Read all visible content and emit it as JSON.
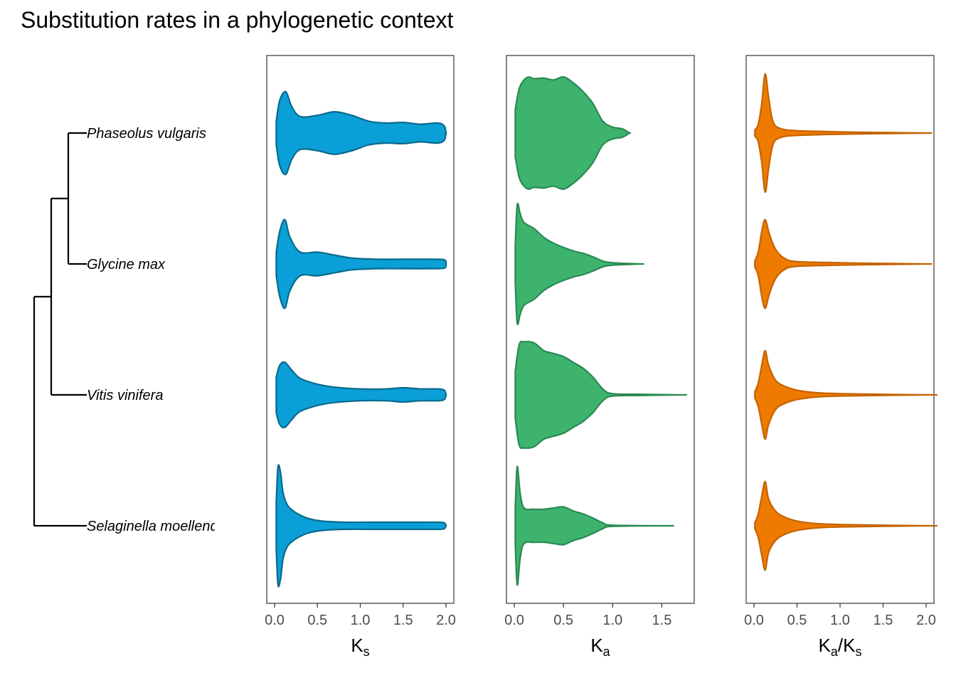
{
  "title": "Substitution rates in a phylogenetic context",
  "species": [
    "Phaseolus vulgaris",
    "Glycine max",
    "Vitis vinifera",
    "Selaginella moellendorffii"
  ],
  "colors": {
    "Ks": "#0a9fd6",
    "Ka": "#3db36e",
    "KaKs": "#ef7a00"
  },
  "chart_data": [
    {
      "type": "violin",
      "panel": "Ks",
      "xlabel": {
        "main": "K",
        "sub": "s"
      },
      "xlim": [
        0,
        2
      ],
      "xticks": [
        "0.0",
        "0.5",
        "1.0",
        "1.5",
        "2.0"
      ],
      "categories": [
        "Phaseolus vulgaris",
        "Glycine max",
        "Vitis vinifera",
        "Selaginella moellendorffii"
      ],
      "series": [
        {
          "name": "Phaseolus vulgaris",
          "range": [
            0.02,
            2.0
          ],
          "profile": [
            [
              0.02,
              0.2
            ],
            [
              0.06,
              0.55
            ],
            [
              0.13,
              0.7
            ],
            [
              0.2,
              0.45
            ],
            [
              0.3,
              0.28
            ],
            [
              0.5,
              0.3
            ],
            [
              0.7,
              0.36
            ],
            [
              0.9,
              0.3
            ],
            [
              1.1,
              0.2
            ],
            [
              1.3,
              0.17
            ],
            [
              1.5,
              0.18
            ],
            [
              1.7,
              0.15
            ],
            [
              1.9,
              0.17
            ],
            [
              1.98,
              0.12
            ],
            [
              2.0,
              0.0
            ]
          ]
        },
        {
          "name": "Glycine max",
          "range": [
            0.02,
            2.0
          ],
          "profile": [
            [
              0.02,
              0.2
            ],
            [
              0.06,
              0.55
            ],
            [
              0.12,
              0.75
            ],
            [
              0.18,
              0.45
            ],
            [
              0.3,
              0.2
            ],
            [
              0.5,
              0.2
            ],
            [
              0.7,
              0.15
            ],
            [
              0.9,
              0.1
            ],
            [
              1.2,
              0.08
            ],
            [
              1.5,
              0.08
            ],
            [
              1.8,
              0.08
            ],
            [
              1.98,
              0.07
            ],
            [
              2.0,
              0.0
            ]
          ]
        },
        {
          "name": "Vitis vinifera",
          "range": [
            0.02,
            2.0
          ],
          "profile": [
            [
              0.02,
              0.3
            ],
            [
              0.06,
              0.5
            ],
            [
              0.12,
              0.55
            ],
            [
              0.2,
              0.42
            ],
            [
              0.3,
              0.28
            ],
            [
              0.5,
              0.18
            ],
            [
              0.7,
              0.13
            ],
            [
              1.0,
              0.1
            ],
            [
              1.3,
              0.1
            ],
            [
              1.5,
              0.12
            ],
            [
              1.7,
              0.1
            ],
            [
              1.9,
              0.1
            ],
            [
              1.98,
              0.08
            ],
            [
              2.0,
              0.0
            ]
          ]
        },
        {
          "name": "Selaginella moellendorffii",
          "range": [
            0.02,
            2.0
          ],
          "profile": [
            [
              0.02,
              0.4
            ],
            [
              0.04,
              1.0
            ],
            [
              0.07,
              0.9
            ],
            [
              0.1,
              0.55
            ],
            [
              0.15,
              0.35
            ],
            [
              0.22,
              0.25
            ],
            [
              0.3,
              0.18
            ],
            [
              0.4,
              0.12
            ],
            [
              0.55,
              0.08
            ],
            [
              0.8,
              0.06
            ],
            [
              1.1,
              0.06
            ],
            [
              1.4,
              0.06
            ],
            [
              1.7,
              0.06
            ],
            [
              1.9,
              0.06
            ],
            [
              1.98,
              0.05
            ],
            [
              2.0,
              0.0
            ]
          ]
        }
      ]
    },
    {
      "type": "violin",
      "panel": "Ka",
      "xlabel": {
        "main": "K",
        "sub": "a"
      },
      "xlim": [
        0,
        1.75
      ],
      "xticks": [
        "0.0",
        "0.5",
        "1.0",
        "1.5"
      ],
      "categories": [
        "Phaseolus vulgaris",
        "Glycine max",
        "Vitis vinifera",
        "Selaginella moellendorffii"
      ],
      "series": [
        {
          "name": "Phaseolus vulgaris",
          "range": [
            0.01,
            1.17
          ],
          "profile": [
            [
              0.01,
              0.4
            ],
            [
              0.05,
              0.75
            ],
            [
              0.1,
              0.9
            ],
            [
              0.15,
              0.95
            ],
            [
              0.2,
              0.92
            ],
            [
              0.3,
              0.93
            ],
            [
              0.4,
              0.9
            ],
            [
              0.5,
              0.95
            ],
            [
              0.6,
              0.85
            ],
            [
              0.7,
              0.7
            ],
            [
              0.8,
              0.5
            ],
            [
              0.9,
              0.2
            ],
            [
              1.0,
              0.1
            ],
            [
              1.1,
              0.07
            ],
            [
              1.17,
              0.0
            ]
          ]
        },
        {
          "name": "Glycine max",
          "range": [
            0.01,
            1.28
          ],
          "profile": [
            [
              0.01,
              0.3
            ],
            [
              0.03,
              1.0
            ],
            [
              0.06,
              0.85
            ],
            [
              0.1,
              0.7
            ],
            [
              0.2,
              0.6
            ],
            [
              0.3,
              0.45
            ],
            [
              0.4,
              0.35
            ],
            [
              0.5,
              0.28
            ],
            [
              0.6,
              0.22
            ],
            [
              0.7,
              0.18
            ],
            [
              0.8,
              0.12
            ],
            [
              0.9,
              0.05
            ],
            [
              1.0,
              0.02
            ],
            [
              1.28,
              0.0
            ]
          ]
        },
        {
          "name": "Vitis vinifera",
          "range": [
            0.01,
            1.7
          ],
          "profile": [
            [
              0.01,
              0.4
            ],
            [
              0.05,
              0.85
            ],
            [
              0.1,
              0.9
            ],
            [
              0.2,
              0.88
            ],
            [
              0.3,
              0.75
            ],
            [
              0.4,
              0.7
            ],
            [
              0.5,
              0.65
            ],
            [
              0.6,
              0.55
            ],
            [
              0.7,
              0.45
            ],
            [
              0.8,
              0.3
            ],
            [
              0.9,
              0.1
            ],
            [
              1.0,
              0.02
            ],
            [
              1.3,
              0.01
            ],
            [
              1.7,
              0.0
            ]
          ]
        },
        {
          "name": "Selaginella moellendorffii",
          "range": [
            0.01,
            1.55
          ],
          "profile": [
            [
              0.01,
              0.3
            ],
            [
              0.03,
              1.0
            ],
            [
              0.06,
              0.55
            ],
            [
              0.1,
              0.3
            ],
            [
              0.2,
              0.28
            ],
            [
              0.3,
              0.28
            ],
            [
              0.4,
              0.3
            ],
            [
              0.5,
              0.32
            ],
            [
              0.6,
              0.25
            ],
            [
              0.7,
              0.2
            ],
            [
              0.8,
              0.13
            ],
            [
              0.9,
              0.05
            ],
            [
              1.0,
              0.01
            ],
            [
              1.55,
              0.0
            ]
          ]
        }
      ]
    },
    {
      "type": "violin",
      "panel": "KaKs",
      "xlabel": {
        "main": "K",
        "sub": "a",
        "sep": "/K",
        "sub2": "s"
      },
      "xlim": [
        0,
        2
      ],
      "xticks": [
        "0.0",
        "0.5",
        "1.0",
        "1.5",
        "2.0"
      ],
      "categories": [
        "Phaseolus vulgaris",
        "Glycine max",
        "Vitis vinifera",
        "Selaginella moellendorffii"
      ],
      "series": [
        {
          "name": "Phaseolus vulgaris",
          "range": [
            0.01,
            2.0
          ],
          "profile": [
            [
              0.01,
              0.05
            ],
            [
              0.05,
              0.15
            ],
            [
              0.09,
              0.5
            ],
            [
              0.13,
              1.0
            ],
            [
              0.17,
              0.6
            ],
            [
              0.22,
              0.2
            ],
            [
              0.3,
              0.08
            ],
            [
              0.5,
              0.04
            ],
            [
              1.0,
              0.02
            ],
            [
              1.5,
              0.01
            ],
            [
              2.0,
              0.0
            ]
          ]
        },
        {
          "name": "Glycine max",
          "range": [
            0.01,
            2.0
          ],
          "profile": [
            [
              0.01,
              0.05
            ],
            [
              0.05,
              0.2
            ],
            [
              0.09,
              0.55
            ],
            [
              0.13,
              0.75
            ],
            [
              0.18,
              0.5
            ],
            [
              0.25,
              0.25
            ],
            [
              0.35,
              0.1
            ],
            [
              0.5,
              0.04
            ],
            [
              1.0,
              0.02
            ],
            [
              1.5,
              0.01
            ],
            [
              2.0,
              0.0
            ]
          ]
        },
        {
          "name": "Vitis vinifera",
          "range": [
            0.01,
            2.0
          ],
          "profile": [
            [
              0.01,
              0.05
            ],
            [
              0.05,
              0.2
            ],
            [
              0.09,
              0.5
            ],
            [
              0.13,
              0.75
            ],
            [
              0.17,
              0.5
            ],
            [
              0.25,
              0.25
            ],
            [
              0.35,
              0.15
            ],
            [
              0.5,
              0.08
            ],
            [
              0.7,
              0.04
            ],
            [
              1.0,
              0.02
            ],
            [
              2.0,
              0.0
            ]
          ]
        },
        {
          "name": "Selaginella moellendorffii",
          "range": [
            0.01,
            2.0
          ],
          "profile": [
            [
              0.01,
              0.05
            ],
            [
              0.05,
              0.2
            ],
            [
              0.09,
              0.5
            ],
            [
              0.13,
              0.75
            ],
            [
              0.17,
              0.45
            ],
            [
              0.25,
              0.25
            ],
            [
              0.35,
              0.15
            ],
            [
              0.5,
              0.08
            ],
            [
              0.7,
              0.04
            ],
            [
              1.0,
              0.02
            ],
            [
              2.0,
              0.0
            ]
          ]
        }
      ]
    }
  ]
}
